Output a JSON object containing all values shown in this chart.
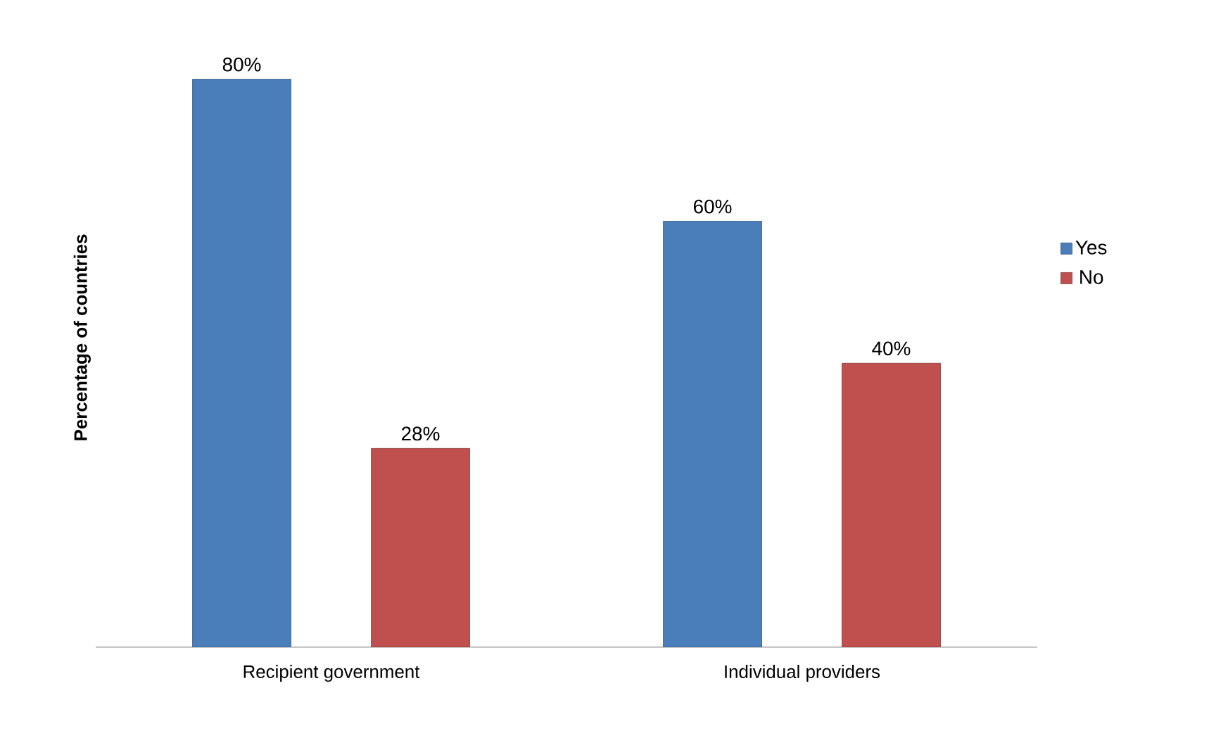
{
  "chart_data": {
    "type": "bar",
    "ylabel": "Percentage of countries",
    "categories": [
      "Recipient government",
      "Individual providers"
    ],
    "series": [
      {
        "name": "Yes",
        "color": "#4a7ebb",
        "values": [
          80,
          60
        ],
        "value_labels": [
          "80%",
          "60%"
        ]
      },
      {
        "name": "No",
        "color": "#c0504d",
        "values": [
          28,
          40
        ],
        "value_labels": [
          "28%",
          "40%"
        ]
      }
    ],
    "legend": "right"
  }
}
